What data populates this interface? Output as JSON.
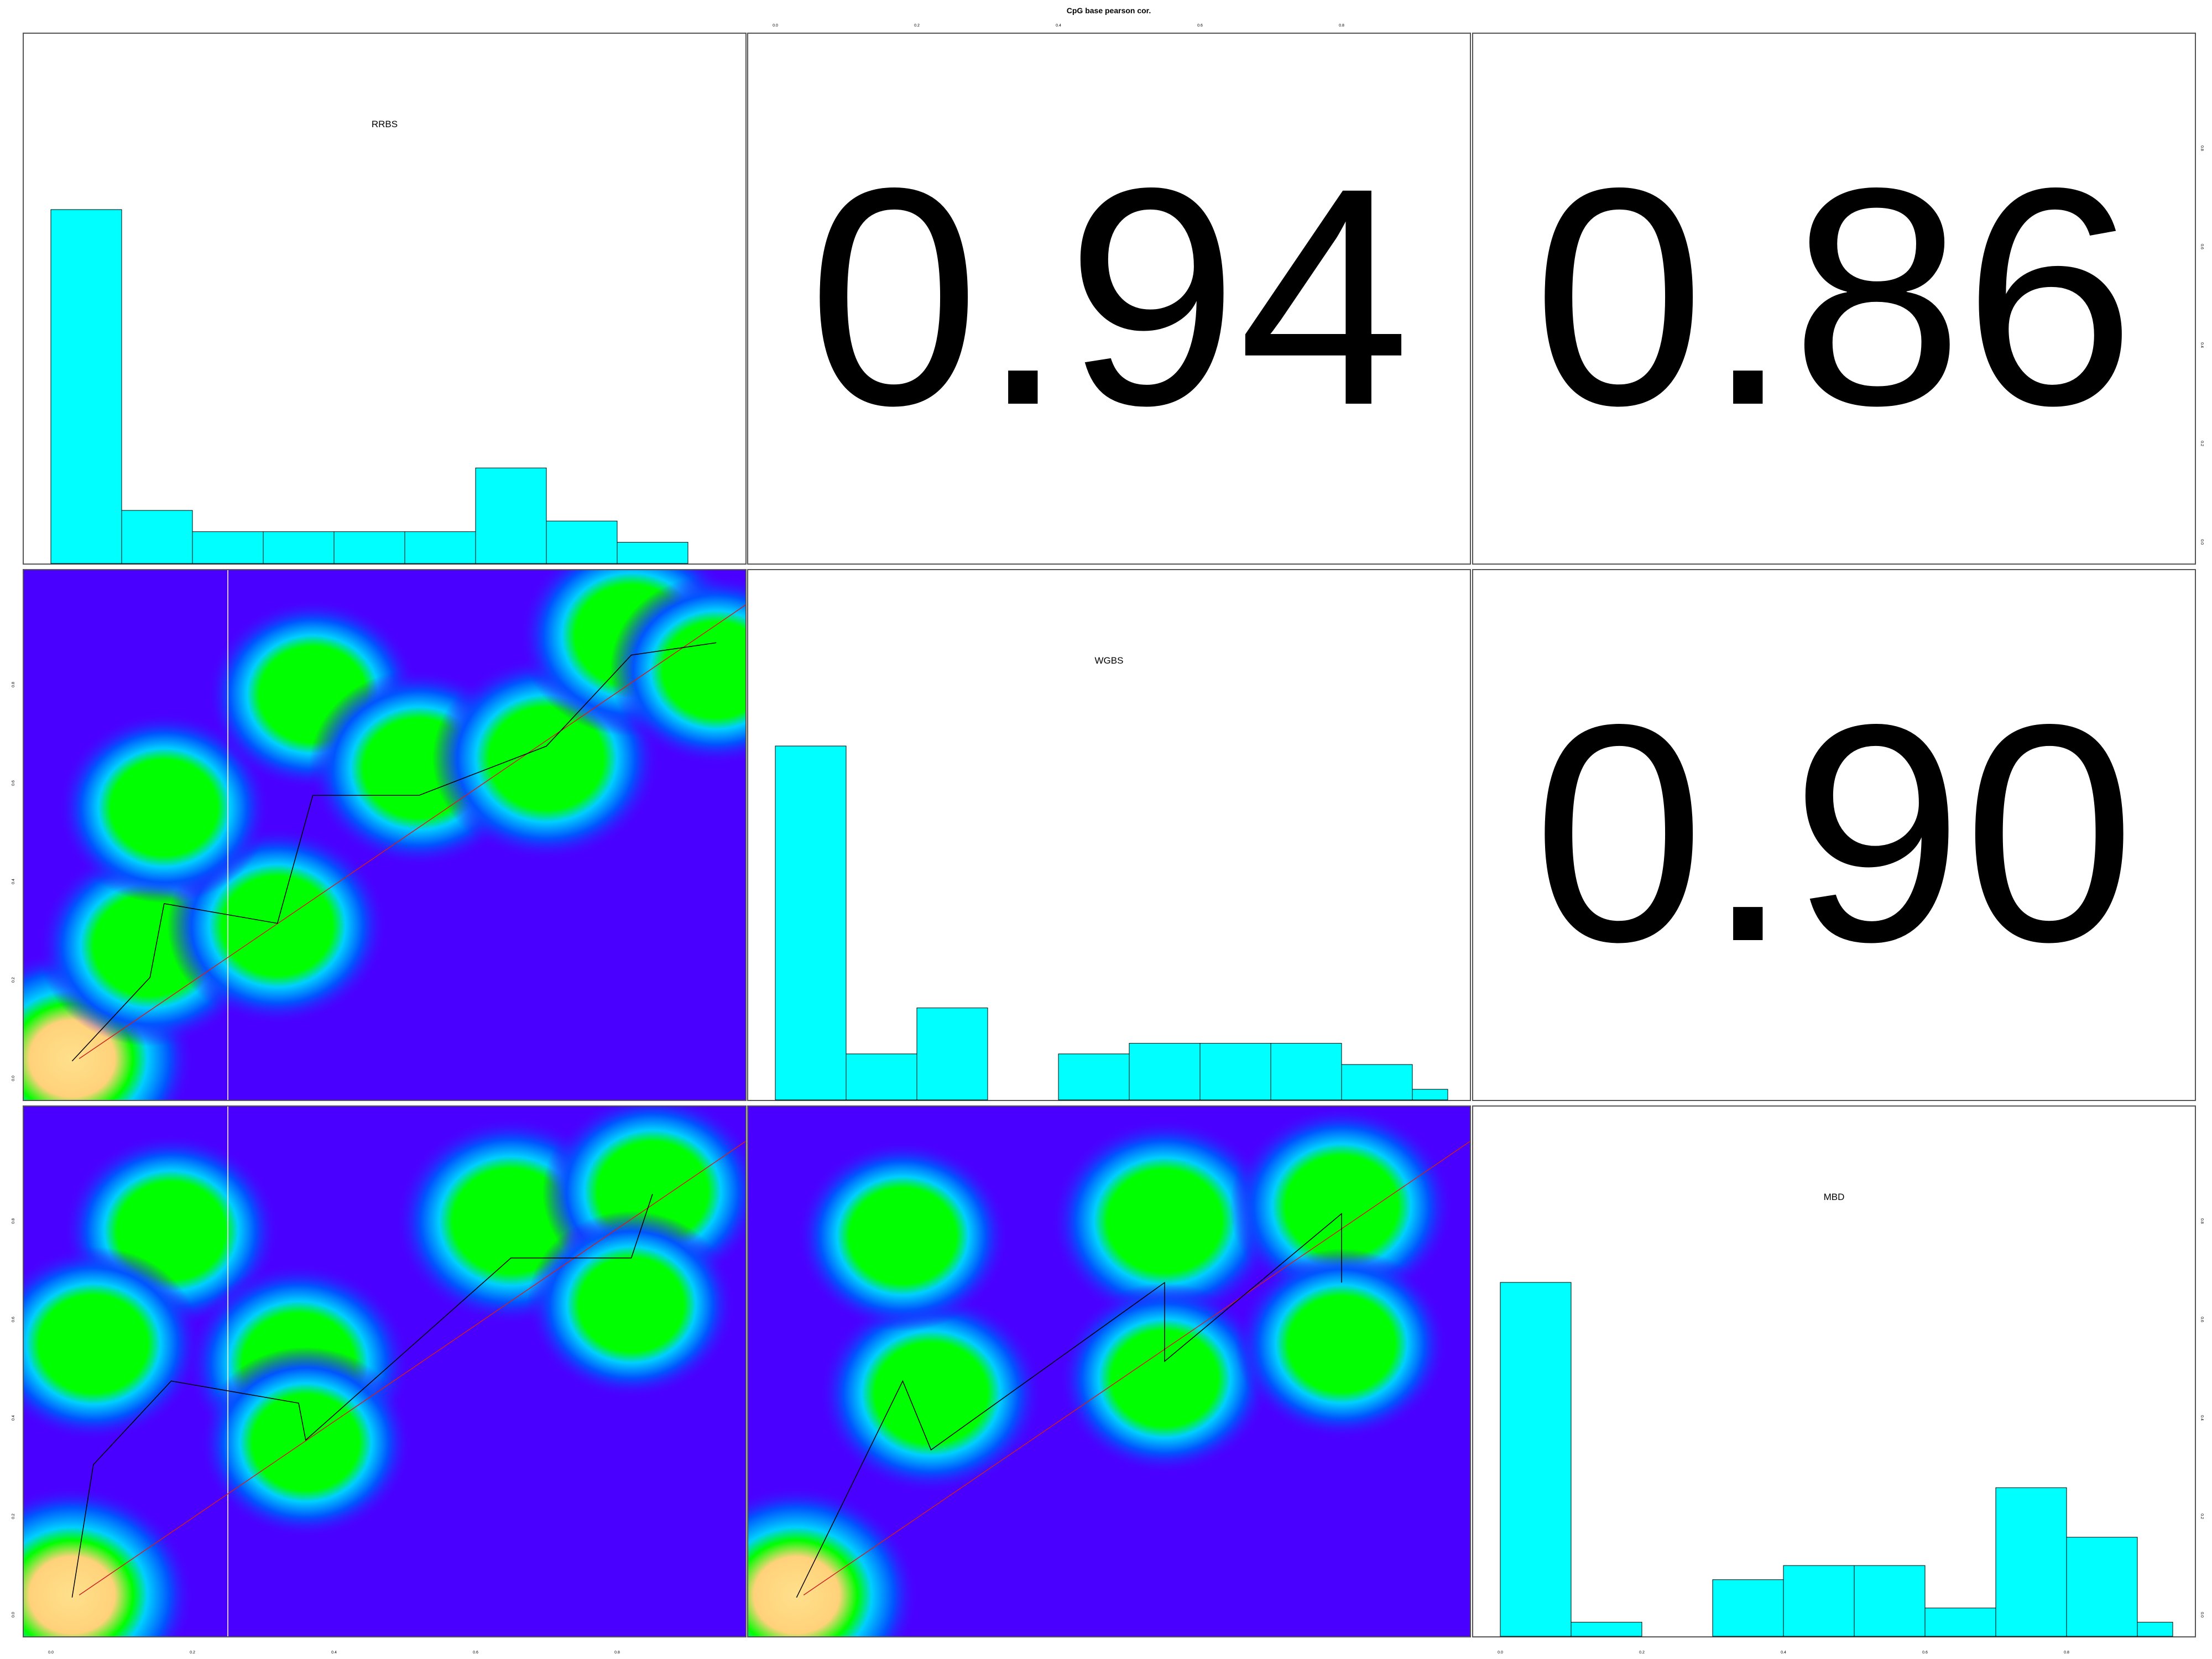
{
  "title": "CpG base pearson cor.",
  "variables": [
    "RRBS",
    "WGBS",
    "MBD"
  ],
  "colors": {
    "hist_fill": "#00ffff",
    "hist_border": "#000000",
    "density_low": "#4a00ff",
    "density_mid": "#00ff00",
    "density_high": "#ffe08c",
    "density_edge": "#0055ff",
    "fit_line": "#000000",
    "loess_line": "#cc2222",
    "guide_line": "#ffffff"
  },
  "chart_data": {
    "type": "pairs",
    "title": "CpG base pearson cor.",
    "variables": [
      "RRBS",
      "WGBS",
      "MBD"
    ],
    "axis_range": [
      0,
      1
    ],
    "axis_ticks": [
      "0.0",
      "0.2",
      "0.4",
      "0.6",
      "0.8"
    ],
    "correlations": [
      {
        "row": "RRBS",
        "col": "WGBS",
        "value": "0.94"
      },
      {
        "row": "RRBS",
        "col": "MBD",
        "value": "0.86"
      },
      {
        "row": "WGBS",
        "col": "MBD",
        "value": "0.90"
      }
    ],
    "histograms": [
      {
        "variable": "RRBS",
        "type": "bar",
        "bins": [
          0.0,
          0.1,
          0.2,
          0.3,
          0.4,
          0.5,
          0.6,
          0.7,
          0.8,
          0.9
        ],
        "values": [
          100,
          15,
          9,
          9,
          9,
          9,
          27,
          12,
          6
        ]
      },
      {
        "variable": "WGBS",
        "type": "bar",
        "bins": [
          0.0,
          0.1,
          0.2,
          0.3,
          0.4,
          0.5,
          0.6,
          0.7,
          0.8,
          0.9,
          0.95
        ],
        "values": [
          100,
          13,
          26,
          0,
          13,
          16,
          16,
          16,
          10,
          3
        ]
      },
      {
        "variable": "MBD",
        "type": "bar",
        "bins": [
          0.0,
          0.1,
          0.2,
          0.3,
          0.4,
          0.5,
          0.6,
          0.7,
          0.8,
          0.9,
          0.95
        ],
        "values": [
          100,
          4,
          0,
          16,
          20,
          20,
          8,
          42,
          28,
          4
        ]
      }
    ],
    "scatter_panels": [
      {
        "x": "RRBS",
        "y": "WGBS",
        "type": "heatmap",
        "clusters": [
          {
            "x": 0.03,
            "y": 0.04,
            "intensity": 1.0
          },
          {
            "x": 0.14,
            "y": 0.27,
            "intensity": 0.75
          },
          {
            "x": 0.32,
            "y": 0.31,
            "intensity": 0.7
          },
          {
            "x": 0.16,
            "y": 0.55,
            "intensity": 0.6
          },
          {
            "x": 0.37,
            "y": 0.78,
            "intensity": 0.6
          },
          {
            "x": 0.52,
            "y": 0.63,
            "intensity": 0.7
          },
          {
            "x": 0.7,
            "y": 0.65,
            "intensity": 0.8
          },
          {
            "x": 0.82,
            "y": 0.9,
            "intensity": 0.75
          },
          {
            "x": 0.94,
            "y": 0.83,
            "intensity": 0.6
          }
        ],
        "fit": [
          [
            0.04,
            0.04
          ],
          [
            1.0,
            0.98
          ]
        ]
      },
      {
        "x": "RRBS",
        "y": "MBD",
        "type": "heatmap",
        "clusters": [
          {
            "x": 0.03,
            "y": 0.04,
            "intensity": 1.0
          },
          {
            "x": 0.17,
            "y": 0.78,
            "intensity": 0.65
          },
          {
            "x": 0.06,
            "y": 0.55,
            "intensity": 0.65
          },
          {
            "x": 0.35,
            "y": 0.51,
            "intensity": 0.75
          },
          {
            "x": 0.36,
            "y": 0.35,
            "intensity": 0.6
          },
          {
            "x": 0.65,
            "y": 0.8,
            "intensity": 0.85
          },
          {
            "x": 0.85,
            "y": 0.86,
            "intensity": 0.7
          },
          {
            "x": 0.82,
            "y": 0.63,
            "intensity": 0.55
          }
        ],
        "fit": [
          [
            0.04,
            0.04
          ],
          [
            1.0,
            0.98
          ]
        ]
      },
      {
        "x": "WGBS",
        "y": "MBD",
        "type": "heatmap",
        "clusters": [
          {
            "x": 0.03,
            "y": 0.04,
            "intensity": 1.0
          },
          {
            "x": 0.22,
            "y": 0.45,
            "intensity": 0.75
          },
          {
            "x": 0.18,
            "y": 0.77,
            "intensity": 0.6
          },
          {
            "x": 0.55,
            "y": 0.8,
            "intensity": 0.8
          },
          {
            "x": 0.8,
            "y": 0.83,
            "intensity": 0.75
          },
          {
            "x": 0.55,
            "y": 0.48,
            "intensity": 0.6
          },
          {
            "x": 0.8,
            "y": 0.55,
            "intensity": 0.6
          }
        ],
        "fit": [
          [
            0.04,
            0.04
          ],
          [
            1.0,
            0.98
          ]
        ]
      }
    ]
  }
}
